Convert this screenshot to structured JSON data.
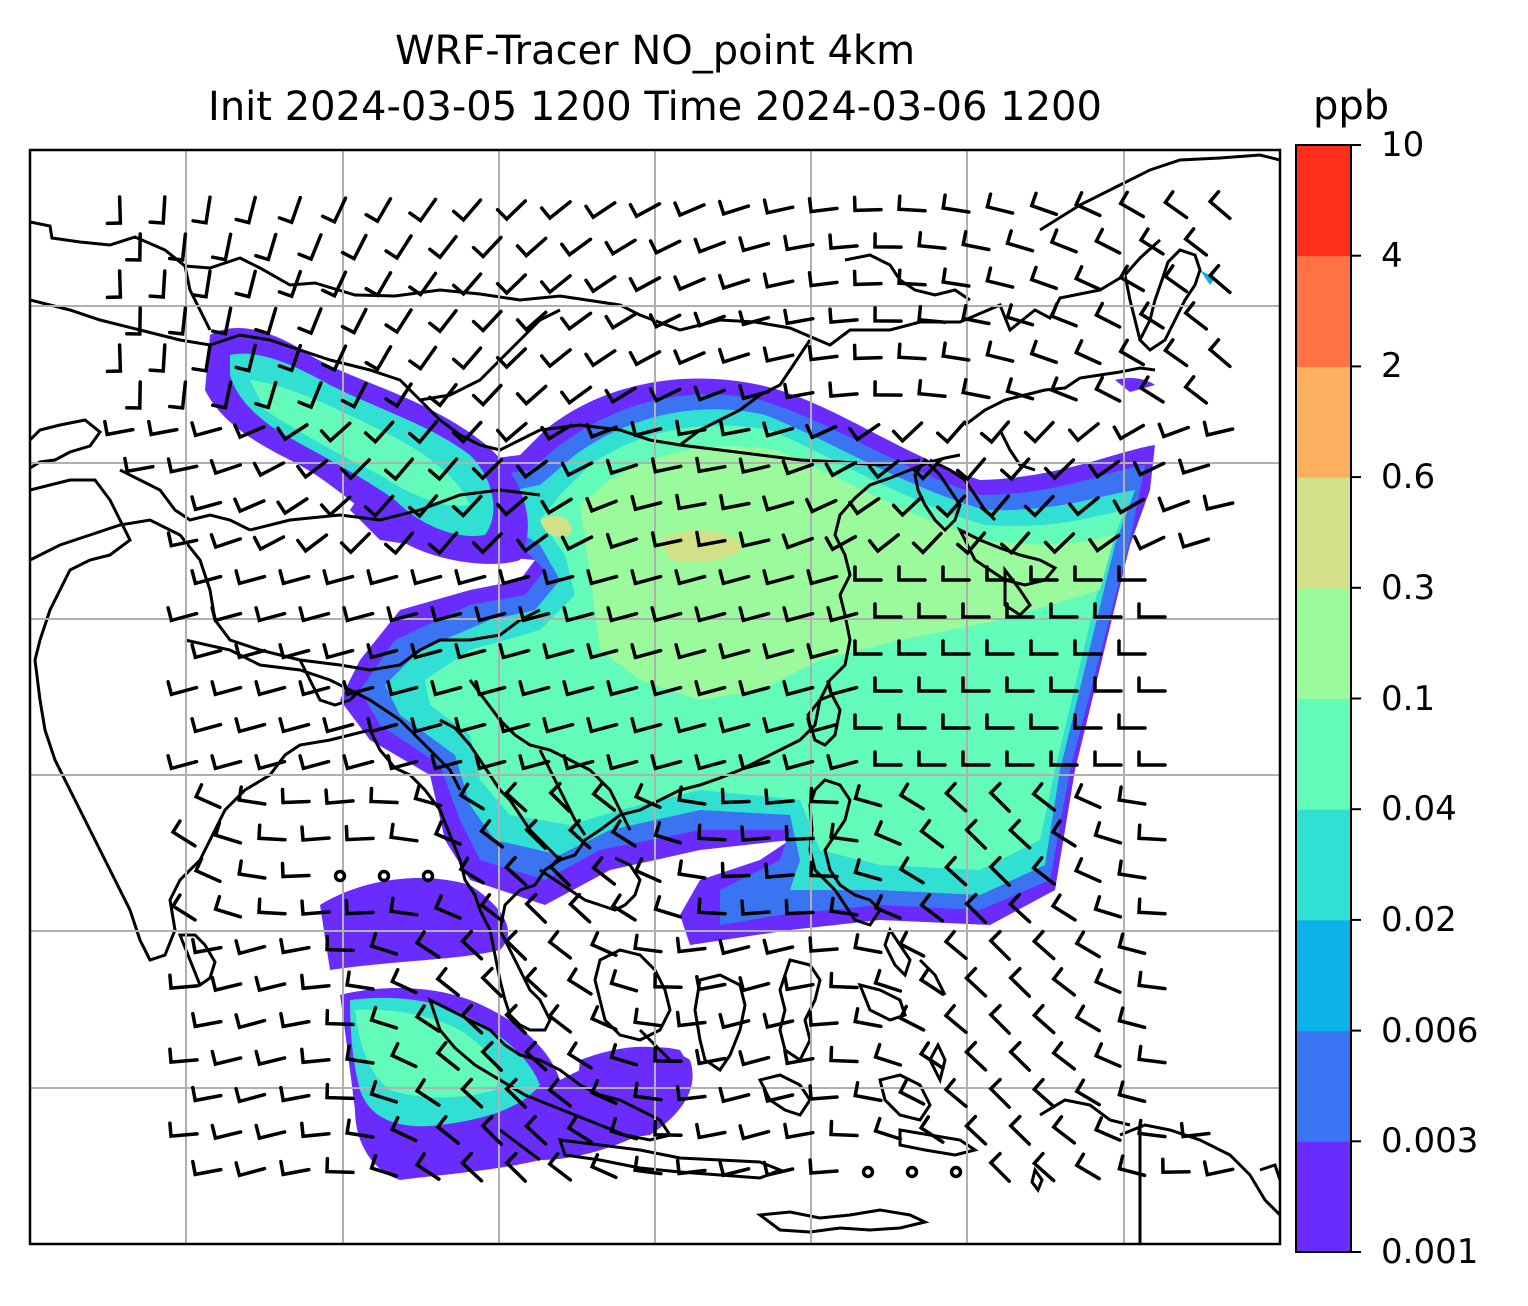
{
  "chart_data": {
    "type": "heatmap",
    "title": "WRF-Tracer NO_point 4km",
    "subtitle": "Init 2024-03-05 1200 Time 2024-03-06 1200",
    "colorbar": {
      "unit": "ppb",
      "levels": [
        "0.001",
        "0.003",
        "0.006",
        "0.02",
        "0.04",
        "0.1",
        "0.3",
        "0.6",
        "2",
        "4",
        "10"
      ],
      "colors": [
        "#6a2cfc",
        "#3a74f2",
        "#0db1ea",
        "#31e0d3",
        "#62fbb9",
        "#9bfb9c",
        "#d3e088",
        "#fbaf5f",
        "#ff7342",
        "#ff2e1a"
      ]
    },
    "grid": true,
    "overlays": [
      "coastlines",
      "country borders",
      "wind barbs"
    ]
  }
}
